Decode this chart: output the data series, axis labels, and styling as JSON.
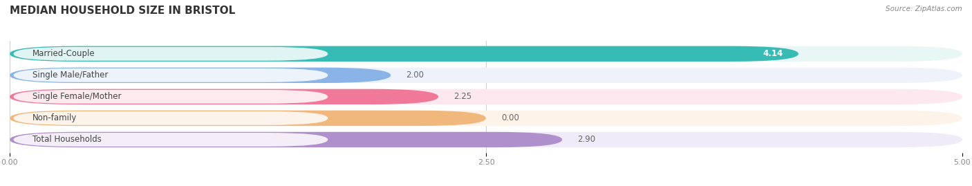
{
  "title": "MEDIAN HOUSEHOLD SIZE IN BRISTOL",
  "source": "Source: ZipAtlas.com",
  "categories": [
    "Married-Couple",
    "Single Male/Father",
    "Single Female/Mother",
    "Non-family",
    "Total Households"
  ],
  "values": [
    4.14,
    2.0,
    2.25,
    0.0,
    2.9
  ],
  "bar_colors": [
    "#36bbb5",
    "#8ab4e8",
    "#f07898",
    "#f0b87c",
    "#b090cc"
  ],
  "bg_colors": [
    "#e8f6f5",
    "#edf2fb",
    "#fde8ef",
    "#fdf3e8",
    "#f0ebf8"
  ],
  "xlim": [
    0,
    5.0
  ],
  "xticks": [
    0.0,
    2.5,
    5.0
  ],
  "bar_height": 0.72,
  "bar_gap": 0.28,
  "background_color": "#ffffff",
  "title_fontsize": 11,
  "label_fontsize": 8.5,
  "value_fontsize": 8.5,
  "non_family_bar_width": 2.5
}
